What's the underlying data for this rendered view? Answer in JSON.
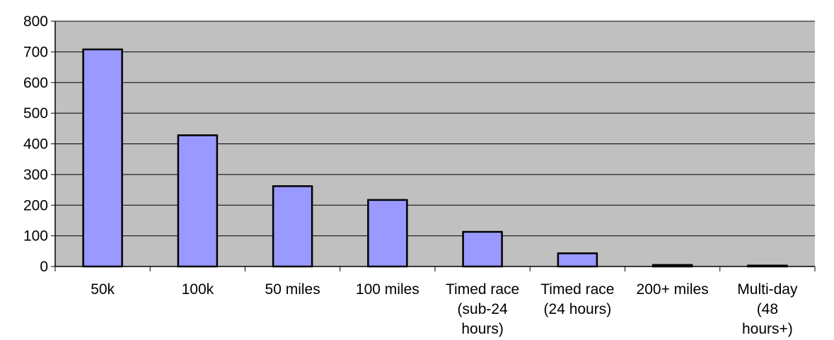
{
  "chart_data": {
    "type": "bar",
    "categories": [
      [
        "50k"
      ],
      [
        "100k"
      ],
      [
        "50 miles"
      ],
      [
        "100 miles"
      ],
      [
        "Timed race",
        "(sub-24",
        "hours)"
      ],
      [
        "Timed race",
        "(24 hours)"
      ],
      [
        "200+ miles"
      ],
      [
        "Multi-day",
        "(48",
        "hours+)"
      ]
    ],
    "values": [
      708,
      428,
      262,
      217,
      113,
      43,
      5,
      3
    ],
    "ylim": [
      0,
      800
    ],
    "yticks": [
      "0",
      "100",
      "200",
      "300",
      "400",
      "500",
      "600",
      "700",
      "800"
    ],
    "title": "",
    "xlabel": "",
    "ylabel": "",
    "grid": true,
    "legend": "none"
  },
  "colors": {
    "plot_background": "#c0c0c0",
    "bar_fill": "#9999ff",
    "bar_stroke": "#000000",
    "gridline": "#000000"
  }
}
